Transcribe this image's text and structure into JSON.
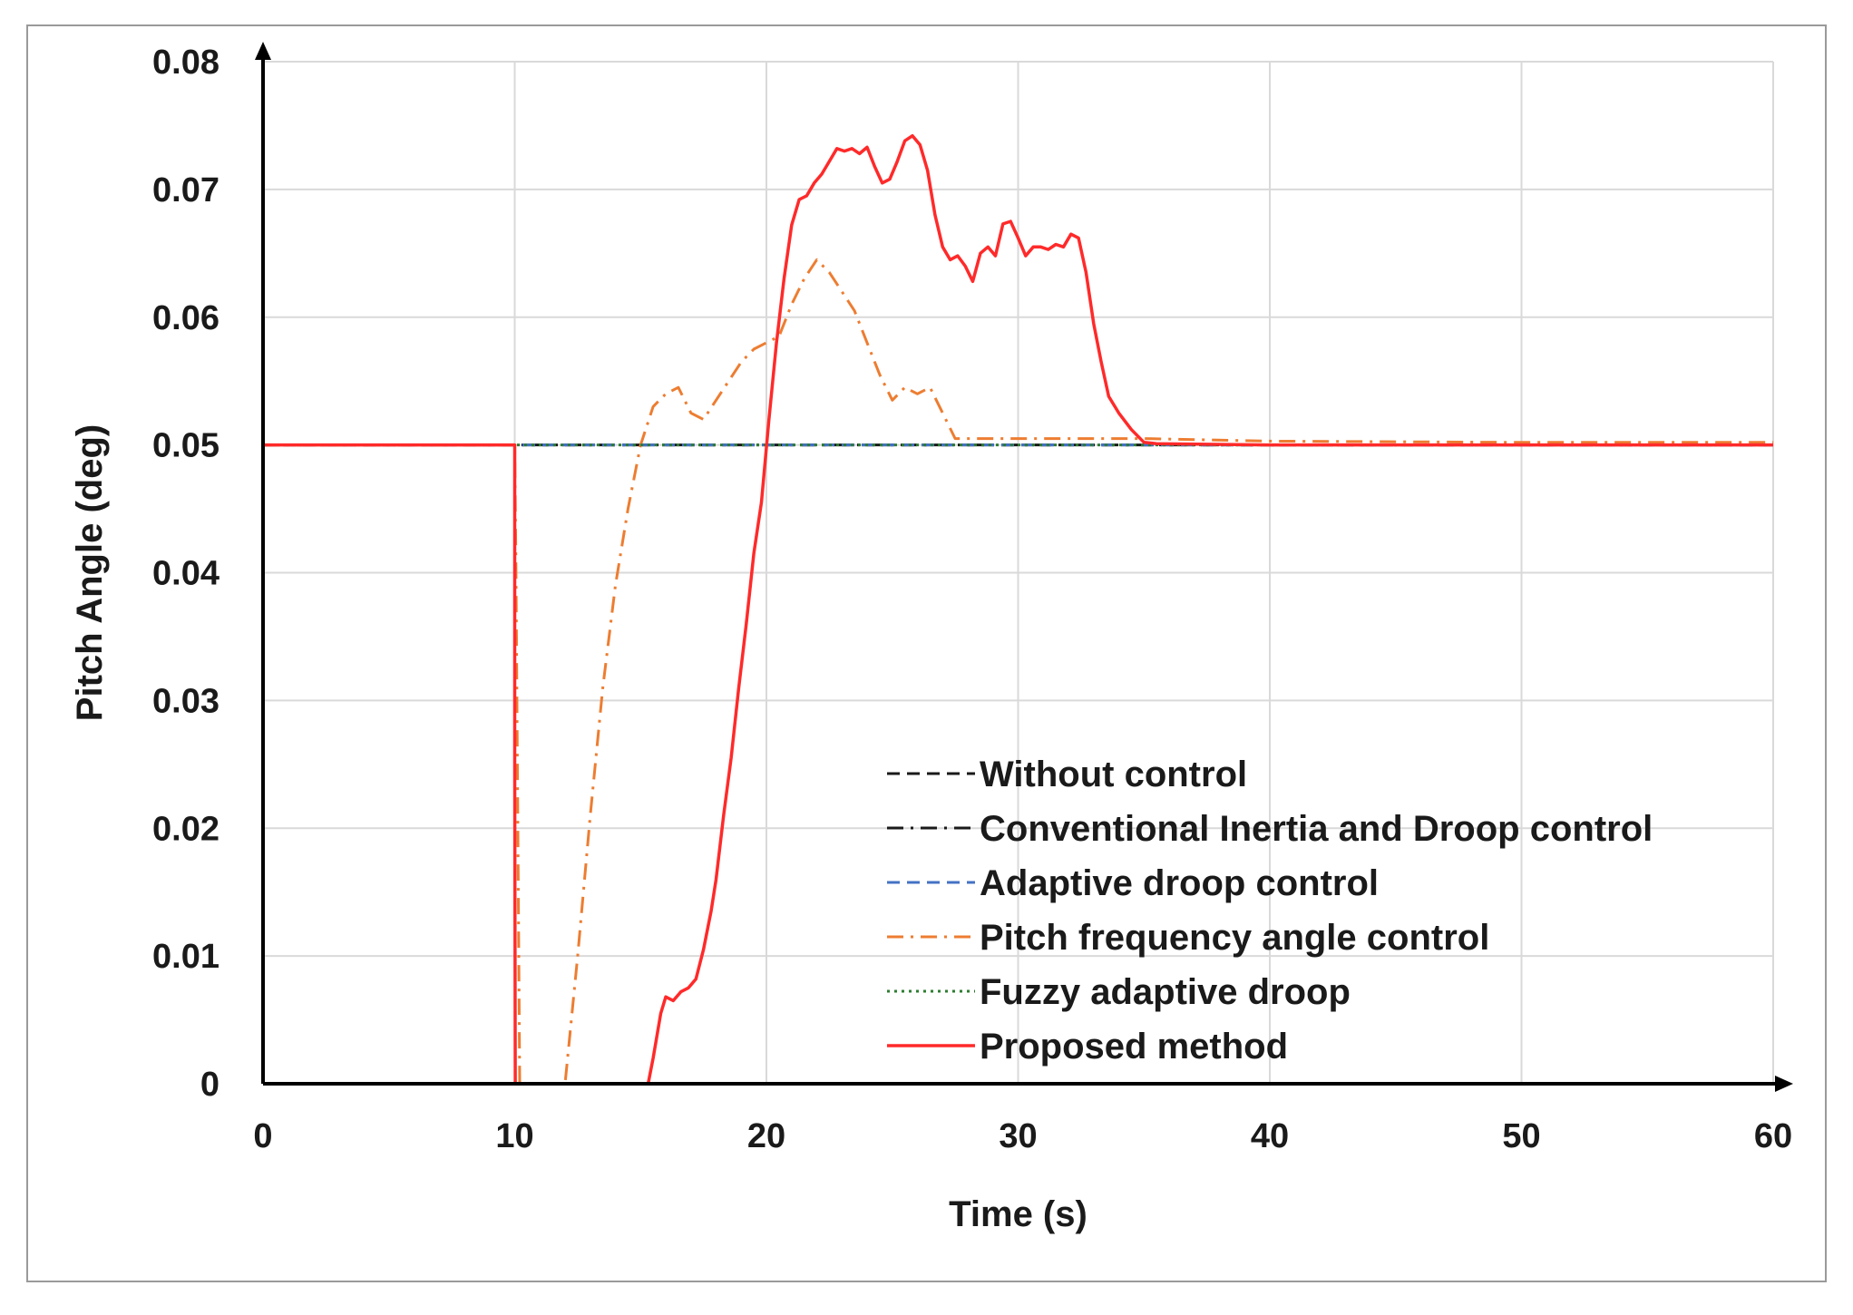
{
  "chart_data": {
    "type": "line",
    "title": "",
    "xlabel": "Time (s)",
    "ylabel": "Pitch Angle (deg)",
    "xlim": [
      0,
      60
    ],
    "ylim": [
      0,
      0.08
    ],
    "xticks": [
      0,
      10,
      20,
      30,
      40,
      50,
      60
    ],
    "xtick_labels": [
      "0",
      "10",
      "20",
      "30",
      "40",
      "50",
      "60"
    ],
    "yticks": [
      0,
      0.01,
      0.02,
      0.03,
      0.04,
      0.05,
      0.06,
      0.07,
      0.08
    ],
    "ytick_labels": [
      "0",
      "0.01",
      "0.02",
      "0.03",
      "0.04",
      "0.05",
      "0.06",
      "0.07",
      "0.08"
    ],
    "grid": true,
    "legend_position": "bottom-right",
    "series": [
      {
        "name": "Without control",
        "color": "#1a1a1a",
        "style": "dashed",
        "x": [
          0,
          60
        ],
        "y": [
          0.05,
          0.05
        ]
      },
      {
        "name": "Conventional Inertia and Droop control",
        "color": "#1a1a1a",
        "style": "dashdot",
        "x": [
          0,
          10,
          10,
          60
        ],
        "y": [
          0.05,
          0.05,
          0.05,
          0.05
        ]
      },
      {
        "name": "Adaptive droop control",
        "color": "#4472c4",
        "style": "dashed",
        "x": [
          0,
          10,
          10,
          60
        ],
        "y": [
          0.05,
          0.05,
          0.05,
          0.05
        ]
      },
      {
        "name": "Pitch frequency angle control",
        "color": "#ed7d31",
        "style": "dashdot",
        "x": [
          0,
          10,
          10.05,
          10.2,
          12.0,
          12.5,
          13.0,
          13.5,
          14.0,
          14.5,
          15.0,
          15.5,
          16.0,
          16.5,
          17.0,
          17.5,
          18.0,
          18.5,
          19.0,
          19.5,
          20.0,
          20.5,
          21.0,
          21.5,
          22.0,
          22.5,
          23.0,
          23.5,
          24.0,
          24.5,
          25.0,
          25.5,
          26.0,
          26.5,
          27.0,
          27.5,
          28.0,
          30.0,
          32.0,
          35.0,
          40.0,
          50.0,
          60.0
        ],
        "y": [
          0.05,
          0.05,
          0.04,
          0,
          0,
          0.01,
          0.021,
          0.031,
          0.039,
          0.045,
          0.05,
          0.053,
          0.054,
          0.0545,
          0.0525,
          0.052,
          0.0535,
          0.055,
          0.0565,
          0.0575,
          0.058,
          0.0585,
          0.061,
          0.063,
          0.0645,
          0.0635,
          0.062,
          0.0605,
          0.058,
          0.0555,
          0.0535,
          0.0545,
          0.054,
          0.0545,
          0.0525,
          0.0505,
          0.0505,
          0.0505,
          0.0505,
          0.0505,
          0.0503,
          0.0502,
          0.0502
        ]
      },
      {
        "name": "Fuzzy adaptive droop",
        "color": "#2e7d32",
        "style": "dotted",
        "x": [
          0,
          10,
          10,
          60
        ],
        "y": [
          0.05,
          0.05,
          0.05,
          0.05
        ]
      },
      {
        "name": "Proposed method",
        "color": "#ff2a2a",
        "style": "solid",
        "x": [
          0,
          10,
          10,
          10.02,
          15.3,
          15.5,
          15.8,
          16.0,
          16.3,
          16.6,
          16.9,
          17.2,
          17.5,
          17.8,
          18.0,
          18.3,
          18.6,
          18.9,
          19.2,
          19.5,
          19.8,
          20.1,
          20.4,
          20.7,
          21.0,
          21.3,
          21.6,
          21.9,
          22.2,
          22.5,
          22.8,
          23.1,
          23.4,
          23.7,
          24.0,
          24.3,
          24.6,
          24.9,
          25.2,
          25.5,
          25.8,
          26.1,
          26.4,
          26.7,
          27.0,
          27.3,
          27.6,
          27.9,
          28.2,
          28.5,
          28.8,
          29.1,
          29.4,
          29.7,
          30.0,
          30.3,
          30.6,
          30.9,
          31.2,
          31.5,
          31.8,
          32.1,
          32.4,
          32.7,
          33.0,
          33.3,
          33.6,
          34.0,
          34.5,
          35.0,
          35.5,
          40.0,
          50.0,
          60.0
        ],
        "y": [
          0.05,
          0.05,
          0.025,
          0,
          0,
          0.002,
          0.0055,
          0.0068,
          0.0065,
          0.0072,
          0.0075,
          0.0082,
          0.0105,
          0.0135,
          0.016,
          0.021,
          0.0255,
          0.031,
          0.036,
          0.0415,
          0.0455,
          0.052,
          0.058,
          0.063,
          0.0672,
          0.0692,
          0.0695,
          0.0705,
          0.0712,
          0.0722,
          0.0732,
          0.073,
          0.0732,
          0.0728,
          0.0733,
          0.0718,
          0.0705,
          0.0708,
          0.0722,
          0.0738,
          0.0742,
          0.0735,
          0.0715,
          0.068,
          0.0655,
          0.0645,
          0.0648,
          0.064,
          0.0628,
          0.065,
          0.0655,
          0.0648,
          0.0673,
          0.0675,
          0.0662,
          0.0648,
          0.0655,
          0.0655,
          0.0653,
          0.0657,
          0.0655,
          0.0665,
          0.0662,
          0.0635,
          0.0595,
          0.0565,
          0.0538,
          0.0525,
          0.0512,
          0.0502,
          0.0501,
          0.05,
          0.05,
          0.05
        ]
      }
    ]
  }
}
